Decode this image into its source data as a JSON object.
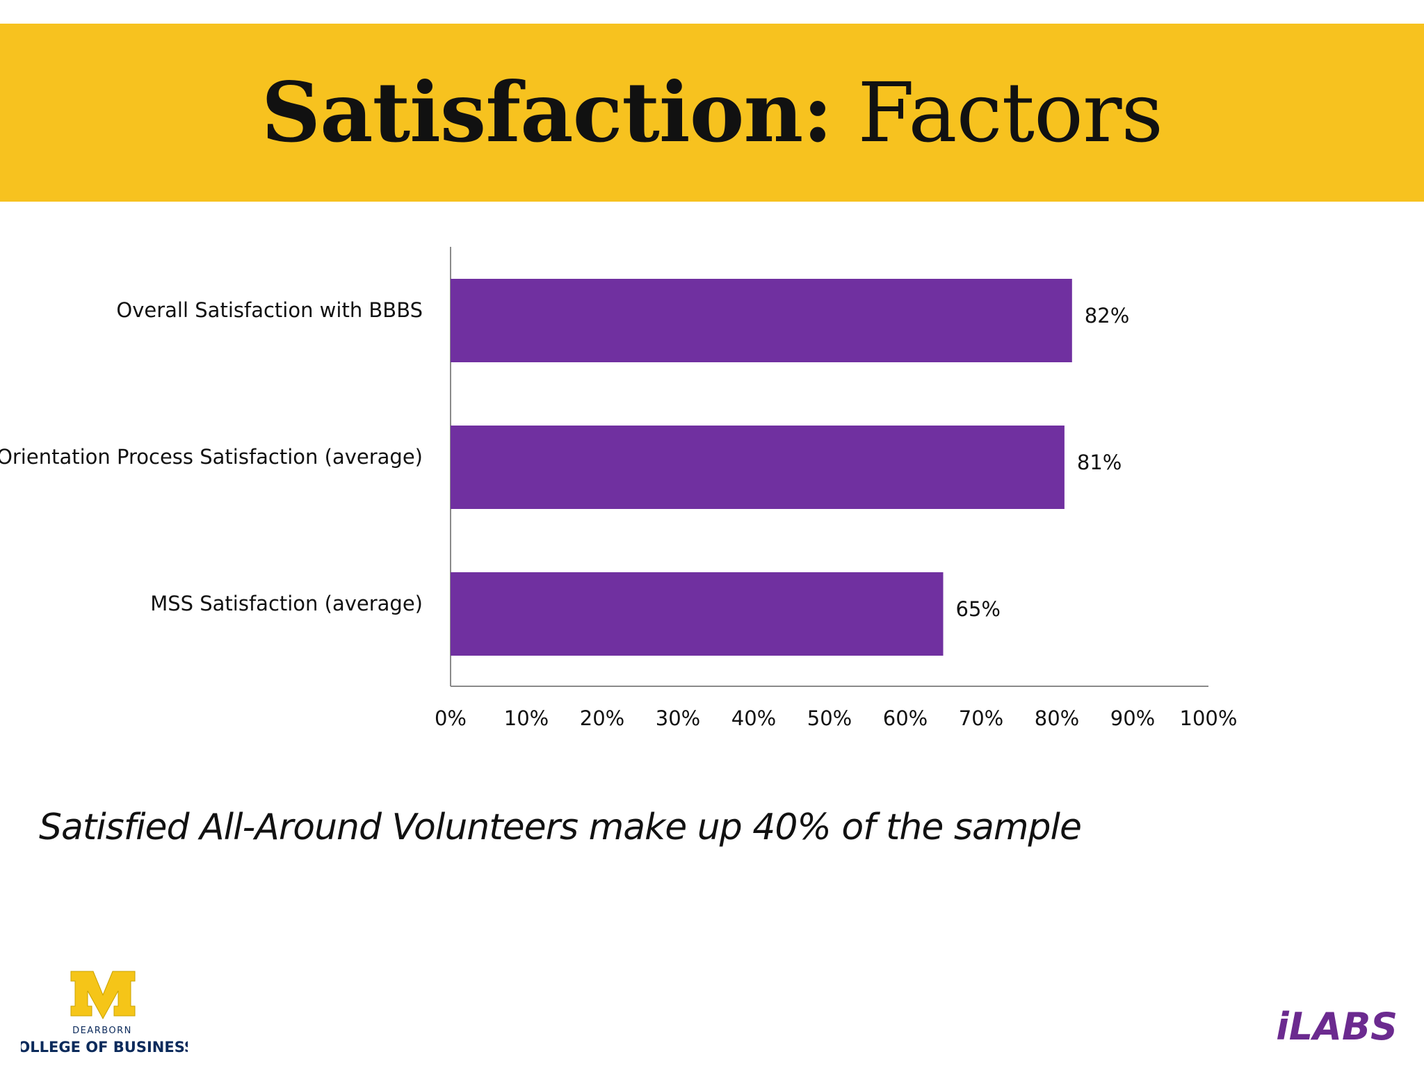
{
  "colors": {
    "banner": "#f7c21f",
    "bar": "#7030a0",
    "axis": "#8a8a8a",
    "text": "#111111",
    "maize": "#f5c518",
    "navy": "#0b2a5b",
    "ilabs": "#6b2a8f"
  },
  "header": {
    "title_bold": "Satisfaction:",
    "title_rest": " Factors"
  },
  "chart_data": {
    "type": "bar",
    "orientation": "horizontal",
    "categories": [
      "Overall Satisfaction with BBBS",
      "Orientation Process Satisfaction (average)",
      "MSS  Satisfaction (average)"
    ],
    "values": [
      82,
      81,
      65
    ],
    "value_labels": [
      "82%",
      "81%",
      "65%"
    ],
    "xlim": [
      0,
      100
    ],
    "x_ticks": [
      "0%",
      "10%",
      "20%",
      "30%",
      "40%",
      "50%",
      "60%",
      "70%",
      "80%",
      "90%",
      "100%"
    ],
    "grid": false,
    "legend": "none"
  },
  "note": "Satisfied All-Around Volunteers make up 40% of the sample",
  "logos": {
    "um_letter": "M",
    "um_campus": "DEARBORN",
    "um_college": "COLLEGE OF BUSINESS",
    "ilabs": "iLABS"
  }
}
